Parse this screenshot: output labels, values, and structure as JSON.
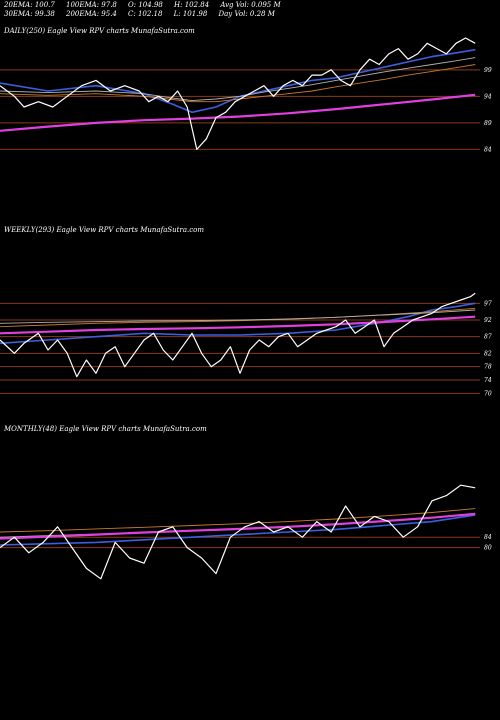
{
  "header": {
    "row1": [
      "20EMA: 100.7",
      "100EMA: 97.8",
      "O: 104.98",
      "H: 102.84",
      "Avg Vol: 0.095 M"
    ],
    "row2": [
      "30EMA: 99.38",
      "200EMA: 95.4",
      "C: 102.18",
      "L: 101.98",
      "Day Vol: 0.28  M"
    ]
  },
  "colors": {
    "background": "#000000",
    "price": "#ffffff",
    "ema_blue": "#3a5fe0",
    "ema_magenta": "#e040e0",
    "ema_orange": "#c87a2a",
    "ema_grey": "#b0b0b0",
    "gridline": "#8b3a1a"
  },
  "chart_data": [
    {
      "type": "line",
      "title": "DAILY(250) Eagle  View  RPV charts MunafaSutra.com",
      "yticks": [
        99,
        94,
        89,
        84
      ],
      "ylim": [
        82,
        105
      ],
      "xlim": [
        0,
        100
      ],
      "series": [
        {
          "role": "price",
          "color": "#ffffff",
          "x": [
            0,
            3,
            5,
            8,
            11,
            14,
            17,
            20,
            23,
            26,
            29,
            31,
            33,
            35,
            37,
            39,
            41,
            43,
            45,
            47,
            49,
            51,
            53,
            55,
            57,
            59,
            61,
            63,
            65,
            67,
            69,
            71,
            73,
            75,
            77,
            79,
            81,
            83,
            85,
            87,
            89,
            91,
            93,
            95,
            97,
            99
          ],
          "y": [
            96,
            94,
            92,
            93,
            92,
            94,
            96,
            97,
            95,
            96,
            95,
            93,
            94,
            93,
            95,
            92,
            84,
            86,
            90,
            91,
            93,
            94,
            95,
            96,
            94,
            96,
            97,
            96,
            98,
            98,
            99,
            97,
            96,
            99,
            101,
            100,
            102,
            103,
            101,
            102,
            104,
            103,
            102,
            104,
            105,
            104
          ]
        },
        {
          "role": "ema",
          "color": "#3a5fe0",
          "x": [
            0,
            10,
            20,
            30,
            33,
            36,
            40,
            45,
            50,
            55,
            60,
            65,
            70,
            75,
            80,
            85,
            90,
            95,
            99
          ],
          "y": [
            96.5,
            95,
            96,
            94.5,
            93.5,
            92.5,
            91,
            92,
            94,
            95,
            96,
            97,
            97.5,
            98.5,
            99.5,
            100.5,
            101.5,
            102.2,
            102.8
          ]
        },
        {
          "role": "ema",
          "color": "#c87a2a",
          "x": [
            0,
            10,
            20,
            30,
            35,
            40,
            45,
            50,
            55,
            60,
            65,
            70,
            75,
            80,
            85,
            90,
            95,
            99
          ],
          "y": [
            94.5,
            94.2,
            94.5,
            94,
            93.5,
            93,
            93,
            93.5,
            94,
            94.5,
            95,
            95.8,
            96.5,
            97.2,
            98,
            98.7,
            99.4,
            100
          ]
        },
        {
          "role": "ema",
          "color": "#b0b0b0",
          "x": [
            0,
            10,
            20,
            30,
            35,
            40,
            45,
            50,
            55,
            60,
            65,
            70,
            75,
            80,
            85,
            90,
            95,
            99
          ],
          "y": [
            95,
            94.7,
            95,
            94.5,
            93.8,
            93.2,
            93.5,
            94,
            94.8,
            95.5,
            96.2,
            97,
            97.8,
            98.6,
            99.3,
            100,
            100.7,
            101.3
          ]
        },
        {
          "role": "ema",
          "color": "#e040e0",
          "x": [
            0,
            10,
            20,
            30,
            40,
            50,
            60,
            70,
            80,
            90,
            99
          ],
          "y": [
            87.5,
            88.3,
            89,
            89.5,
            89.8,
            90.2,
            90.8,
            91.6,
            92.5,
            93.4,
            94.3
          ]
        }
      ]
    },
    {
      "type": "line",
      "title": "WEEKLY(293) Eagle  View  RPV charts MunafaSutra.com",
      "yticks": [
        97,
        92,
        87,
        82,
        78,
        74,
        70
      ],
      "ylim": [
        68,
        101
      ],
      "xlim": [
        0,
        100
      ],
      "series": [
        {
          "role": "price",
          "color": "#ffffff",
          "x": [
            0,
            3,
            5,
            8,
            10,
            12,
            14,
            16,
            18,
            20,
            22,
            24,
            26,
            28,
            30,
            32,
            34,
            36,
            38,
            40,
            42,
            44,
            46,
            48,
            50,
            52,
            54,
            56,
            58,
            60,
            62,
            64,
            66,
            68,
            70,
            72,
            74,
            76,
            78,
            80,
            82,
            84,
            86,
            88,
            90,
            92,
            94,
            96,
            98,
            99
          ],
          "y": [
            86,
            82,
            85,
            88,
            83,
            86,
            82,
            75,
            80,
            76,
            82,
            84,
            78,
            82,
            86,
            88,
            83,
            80,
            84,
            88,
            82,
            78,
            80,
            84,
            76,
            83,
            86,
            84,
            87,
            88,
            84,
            86,
            88,
            89,
            90,
            92,
            88,
            90,
            92,
            84,
            88,
            90,
            92,
            93,
            94,
            96,
            97,
            98,
            99,
            100
          ]
        },
        {
          "role": "ema",
          "color": "#3a5fe0",
          "x": [
            0,
            10,
            20,
            30,
            40,
            50,
            60,
            70,
            80,
            85,
            90,
            95,
            99
          ],
          "y": [
            85,
            86,
            87,
            88,
            87.5,
            87.5,
            88,
            89,
            91.5,
            93,
            95,
            96,
            97
          ]
        },
        {
          "role": "ema",
          "color": "#c87a2a",
          "x": [
            0,
            10,
            20,
            30,
            40,
            50,
            60,
            70,
            80,
            90,
            99
          ],
          "y": [
            90,
            90.5,
            91,
            91.3,
            91.5,
            91.8,
            92.2,
            92.8,
            93.6,
            94.5,
            95.5
          ]
        },
        {
          "role": "ema",
          "color": "#b0b0b0",
          "x": [
            0,
            10,
            20,
            30,
            40,
            50,
            60,
            70,
            80,
            90,
            99
          ],
          "y": [
            91,
            91.3,
            91.5,
            91.7,
            91.8,
            92,
            92.3,
            92.8,
            93.5,
            94.2,
            95
          ]
        },
        {
          "role": "ema",
          "color": "#e040e0",
          "x": [
            0,
            10,
            20,
            30,
            40,
            50,
            60,
            70,
            80,
            90,
            99
          ],
          "y": [
            88,
            88.5,
            89,
            89.3,
            89.5,
            89.8,
            90.2,
            90.7,
            91.4,
            92.2,
            93
          ]
        }
      ]
    },
    {
      "type": "line",
      "title": "MONTHLY(48) Eagle  View  RPV charts MunafaSutra.com",
      "yticks": [
        84,
        80
      ],
      "ylim": [
        56,
        106
      ],
      "xlim": [
        0,
        100
      ],
      "series": [
        {
          "role": "price",
          "color": "#ffffff",
          "x": [
            0,
            3,
            6,
            9,
            12,
            15,
            18,
            21,
            24,
            27,
            30,
            33,
            36,
            39,
            42,
            45,
            48,
            51,
            54,
            57,
            60,
            63,
            66,
            69,
            72,
            75,
            78,
            81,
            84,
            87,
            90,
            93,
            96,
            99
          ],
          "y": [
            80,
            84,
            78,
            82,
            88,
            80,
            72,
            68,
            82,
            76,
            74,
            86,
            88,
            80,
            76,
            70,
            84,
            88,
            90,
            86,
            88,
            84,
            90,
            86,
            96,
            88,
            92,
            90,
            84,
            88,
            98,
            100,
            104,
            103
          ]
        },
        {
          "role": "ema",
          "color": "#3a5fe0",
          "x": [
            0,
            10,
            20,
            30,
            40,
            50,
            60,
            70,
            80,
            90,
            99
          ],
          "y": [
            81,
            81.5,
            82,
            83,
            84,
            85,
            86,
            87,
            88.5,
            90,
            92.5
          ]
        },
        {
          "role": "ema",
          "color": "#c87a2a",
          "x": [
            0,
            10,
            20,
            30,
            40,
            50,
            60,
            70,
            80,
            90,
            99
          ],
          "y": [
            86,
            86.5,
            87.2,
            87.8,
            88.5,
            89.2,
            90,
            91,
            92.2,
            93.5,
            95
          ]
        },
        {
          "role": "ema",
          "color": "#b0b0b0",
          "x": [
            0,
            10,
            20,
            30,
            40,
            50,
            60,
            70,
            80,
            90,
            99
          ],
          "y": [
            84,
            84.6,
            85.2,
            85.8,
            86.4,
            87,
            87.8,
            88.8,
            90,
            91.5,
            93
          ]
        },
        {
          "role": "ema",
          "color": "#e040e0",
          "x": [
            0,
            10,
            20,
            30,
            40,
            50,
            60,
            70,
            80,
            90,
            99
          ],
          "y": [
            83.5,
            84.2,
            85,
            85.8,
            86.5,
            87.2,
            88,
            89,
            90.2,
            91.5,
            93
          ]
        }
      ]
    }
  ]
}
